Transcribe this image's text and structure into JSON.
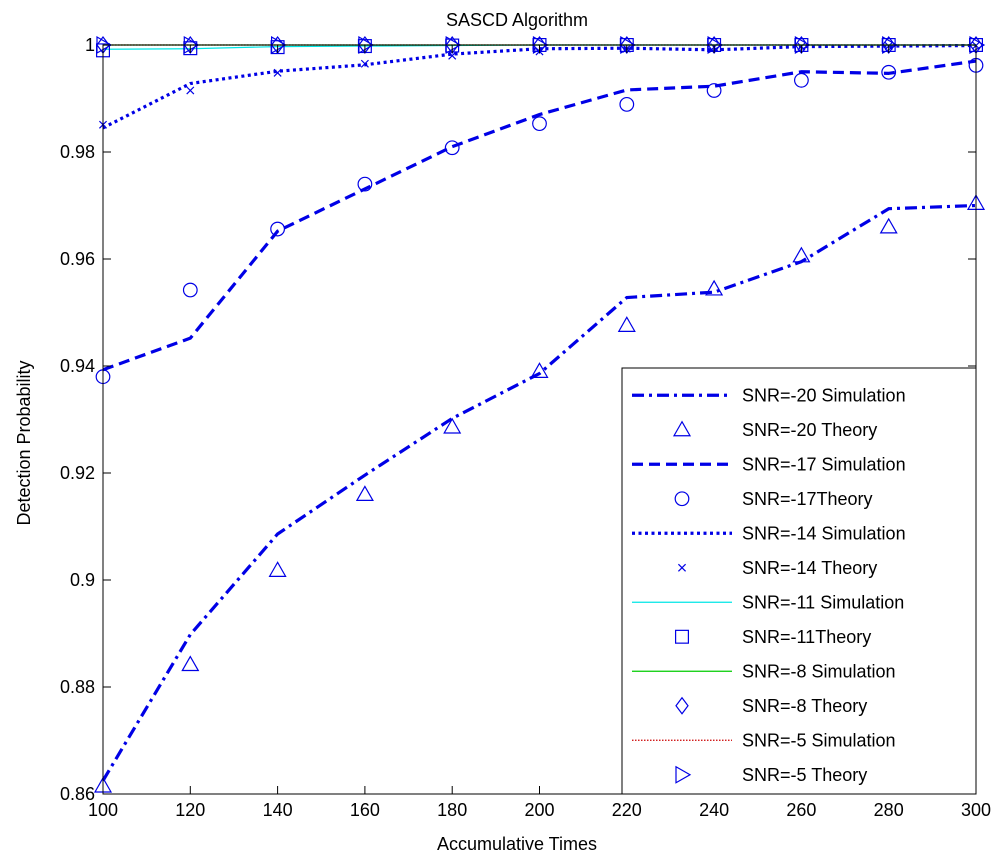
{
  "chart_data": {
    "type": "line",
    "title": "SASCD Algorithm",
    "xlabel": "Accumulative Times",
    "ylabel": "Detection Probability",
    "xlim": [
      100,
      300
    ],
    "ylim": [
      0.86,
      1.0
    ],
    "xticks": [
      100,
      120,
      140,
      160,
      180,
      200,
      220,
      240,
      260,
      280,
      300
    ],
    "yticks": [
      0.86,
      0.88,
      0.9,
      0.92,
      0.94,
      0.96,
      0.98,
      1
    ],
    "ytick_labels": [
      "0.86",
      "0.88",
      "0.9",
      "0.92",
      "0.94",
      "0.96",
      "0.98",
      "1"
    ],
    "grid": false,
    "legend_position": "bottom-right",
    "x": [
      100,
      120,
      140,
      160,
      180,
      200,
      220,
      240,
      260,
      280,
      300
    ],
    "series": [
      {
        "name": "SNR=-20 Simulation",
        "style": "dashdot",
        "color": "#0000e6",
        "values": [
          0.8625,
          0.8898,
          0.9086,
          0.9196,
          0.9302,
          0.9386,
          0.9528,
          0.9538,
          0.9595,
          0.9694,
          0.97
        ]
      },
      {
        "name": "SNR=-20 Theory",
        "style": "marker",
        "marker": "triangle",
        "color": "#0000e6",
        "values": [
          0.8615,
          0.8842,
          0.9018,
          0.916,
          0.9286,
          0.939,
          0.9476,
          0.9544,
          0.9606,
          0.966,
          0.9704
        ]
      },
      {
        "name": "SNR=-17 Simulation",
        "style": "dashed",
        "color": "#0000e6",
        "values": [
          0.9393,
          0.9452,
          0.9652,
          0.9731,
          0.981,
          0.987,
          0.9916,
          0.9923,
          0.995,
          0.9947,
          0.997
        ]
      },
      {
        "name": "SNR=-17Theory",
        "style": "marker",
        "marker": "circle",
        "color": "#0000e6",
        "values": [
          0.938,
          0.9542,
          0.9656,
          0.974,
          0.9808,
          0.9853,
          0.9889,
          0.9915,
          0.9934,
          0.9949,
          0.9962
        ]
      },
      {
        "name": "SNR=-14 Simulation",
        "style": "dotted",
        "color": "#0000e6",
        "values": [
          0.9845,
          0.9928,
          0.9951,
          0.9963,
          0.9983,
          0.9993,
          0.9994,
          0.9991,
          0.9997,
          0.9998,
          0.9999
        ]
      },
      {
        "name": "SNR=-14 Theory",
        "style": "marker",
        "marker": "x",
        "color": "#0000e6",
        "values": [
          0.9851,
          0.9915,
          0.9948,
          0.9965,
          0.998,
          0.9988,
          0.9993,
          0.9996,
          0.9997,
          0.9998,
          0.9999
        ]
      },
      {
        "name": "SNR=-11 Simulation",
        "style": "solid",
        "color": "#00e6e6",
        "values": [
          0.9992,
          0.9993,
          0.9997,
          0.9998,
          0.9999,
          1.0,
          1.0,
          1.0,
          1.0,
          1.0,
          1.0
        ]
      },
      {
        "name": "SNR=-11Theory",
        "style": "marker",
        "marker": "square",
        "color": "#0000e6",
        "values": [
          0.999,
          0.9994,
          0.9996,
          0.9998,
          0.9999,
          1.0,
          1.0,
          1.0,
          1.0,
          1.0,
          1.0
        ]
      },
      {
        "name": "SNR=-8 Simulation",
        "style": "solid",
        "color": "#00cc00",
        "values": [
          1.0,
          1.0,
          1.0,
          1.0,
          1.0,
          1.0,
          1.0,
          1.0,
          1.0,
          1.0,
          1.0
        ]
      },
      {
        "name": "SNR=-8 Theory",
        "style": "marker",
        "marker": "diamond",
        "color": "#0000e6",
        "values": [
          1.0,
          1.0,
          1.0,
          1.0,
          1.0,
          1.0,
          1.0,
          1.0,
          1.0,
          1.0,
          1.0
        ]
      },
      {
        "name": "SNR=-5 Simulation",
        "style": "dotted-thin",
        "color": "#cc0000",
        "values": [
          1.0,
          1.0,
          1.0,
          1.0,
          1.0,
          1.0,
          1.0,
          1.0,
          1.0,
          1.0,
          1.0
        ]
      },
      {
        "name": "SNR=-5 Theory",
        "style": "marker",
        "marker": "triangle-right",
        "color": "#0000e6",
        "values": [
          1.0,
          1.0,
          1.0,
          1.0,
          1.0,
          1.0,
          1.0,
          1.0,
          1.0,
          1.0,
          1.0
        ]
      }
    ]
  }
}
